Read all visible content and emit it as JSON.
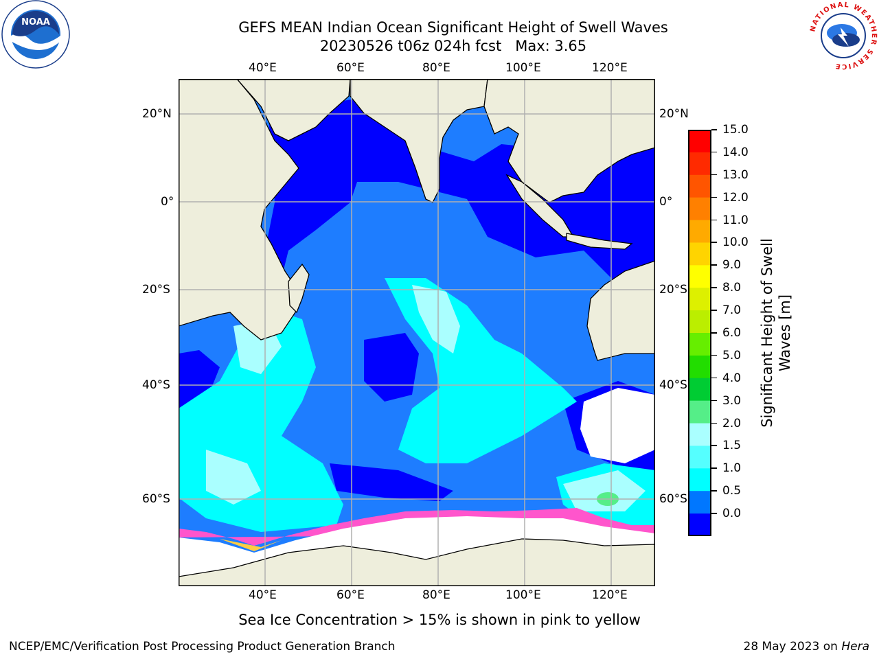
{
  "title": {
    "line1": "GEFS MEAN Indian Ocean Significant Height of Swell Waves",
    "line2": "20230526 t06z 024h fcst   Max: 3.65"
  },
  "map": {
    "lon_labels": [
      "40°E",
      "60°E",
      "80°E",
      "100°E",
      "120°E"
    ],
    "lat_labels": [
      "20°N",
      "0°",
      "20°S",
      "40°S",
      "60°S"
    ]
  },
  "colorbar": {
    "label_line1": "Significant Height of Swell",
    "label_line2": "Waves [m]",
    "ticks": [
      "15.0",
      "14.0",
      "13.0",
      "12.0",
      "11.0",
      "10.0",
      "9.0",
      "8.0",
      "7.0",
      "6.0",
      "5.0",
      "4.0",
      "3.0",
      "2.0",
      "1.5",
      "1.0",
      "0.5",
      "0.0"
    ],
    "colors": [
      "#ff0000",
      "#ff2a00",
      "#ff5500",
      "#ff8000",
      "#ffaa00",
      "#ffd400",
      "#ffff00",
      "#ddf000",
      "#bbee00",
      "#66ee00",
      "#22dd00",
      "#00cc33",
      "#55ee88",
      "#aaffff",
      "#55ffff",
      "#00ffff",
      "#0077ff",
      "#0000ff"
    ]
  },
  "subtitle": "Sea Ice Concentration > 15% is shown in pink to yellow",
  "footer": {
    "left": "NCEP/EMC/Verification Post Processing Product Generation Branch",
    "right_prefix": "28 May 2023 on ",
    "right_italic": "Hera"
  },
  "logos": {
    "noaa": "NOAA",
    "nws_ring": "NATIONAL WEATHER SERVICE"
  },
  "colors": {
    "land": "#eeeedc",
    "swell_low": "#0000ff",
    "swell_mid": "#1e7dff",
    "swell_high": "#00ffff",
    "swell_peak": "#aaffff",
    "ice": "#ff55cc",
    "grid": "#b0b0b0"
  }
}
